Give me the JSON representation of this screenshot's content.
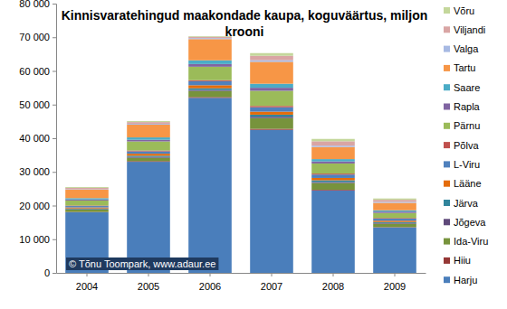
{
  "chart_data": {
    "type": "bar",
    "stacked": true,
    "legend": "right",
    "grid": false,
    "title": "Kinnisvaratehingud maakondade kaupa, koguväärtus, miljon krooni",
    "annotations": [
      "© Tõnu Toompark, www.adaur.ee"
    ],
    "categories": [
      "2004",
      "2005",
      "2006",
      "2007",
      "2008",
      "2009"
    ],
    "ylim": [
      0,
      80000
    ],
    "yticks": [
      0,
      {
        "value": 10000,
        "label": "10 000"
      },
      {
        "value": 20000,
        "label": "20 000"
      },
      {
        "value": 30000,
        "label": "30 000"
      },
      {
        "value": 40000,
        "label": "40 000"
      },
      {
        "value": 50000,
        "label": "50 000"
      },
      {
        "value": 60000,
        "label": "60 000"
      },
      {
        "value": 70000,
        "label": "70 000"
      },
      {
        "value": 80000,
        "label": "80 000"
      }
    ],
    "series": [
      {
        "name": "Harju",
        "color": "#4a7ebb",
        "values": [
          18000,
          33000,
          52000,
          42500,
          24500,
          13500
        ]
      },
      {
        "name": "Hiiu",
        "color": "#953735",
        "values": [
          100,
          200,
          250,
          300,
          200,
          100
        ]
      },
      {
        "name": "Ida-Viru",
        "color": "#77933c",
        "values": [
          700,
          1000,
          1800,
          3200,
          2000,
          1000
        ]
      },
      {
        "name": "Jõgeva",
        "color": "#5f497a",
        "values": [
          150,
          250,
          300,
          400,
          300,
          200
        ]
      },
      {
        "name": "Järva",
        "color": "#31859c",
        "values": [
          200,
          350,
          500,
          600,
          500,
          300
        ]
      },
      {
        "name": "Lääne",
        "color": "#e46c0a",
        "values": [
          300,
          600,
          900,
          900,
          700,
          400
        ]
      },
      {
        "name": "L-Viru",
        "color": "#4f81bd",
        "values": [
          400,
          700,
          1200,
          1300,
          1000,
          600
        ]
      },
      {
        "name": "Põlva",
        "color": "#c0504d",
        "values": [
          150,
          250,
          300,
          400,
          300,
          200
        ]
      },
      {
        "name": "Pärnu",
        "color": "#9bbb59",
        "values": [
          1500,
          2700,
          4000,
          4500,
          3000,
          1500
        ]
      },
      {
        "name": "Rapla",
        "color": "#8064a2",
        "values": [
          300,
          500,
          800,
          900,
          600,
          400
        ]
      },
      {
        "name": "Saare",
        "color": "#4bacc6",
        "values": [
          400,
          700,
          1100,
          1200,
          700,
          400
        ]
      },
      {
        "name": "Tartu",
        "color": "#f79646",
        "values": [
          2500,
          3800,
          6300,
          6500,
          3600,
          2200
        ]
      },
      {
        "name": "Valga",
        "color": "#a7b9e3",
        "values": [
          150,
          250,
          300,
          500,
          400,
          300
        ]
      },
      {
        "name": "Viljandi",
        "color": "#d9a5a4",
        "values": [
          400,
          500,
          400,
          1300,
          1300,
          600
        ]
      },
      {
        "name": "Võru",
        "color": "#c4d79b",
        "values": [
          250,
          300,
          200,
          800,
          700,
          400
        ]
      }
    ]
  }
}
